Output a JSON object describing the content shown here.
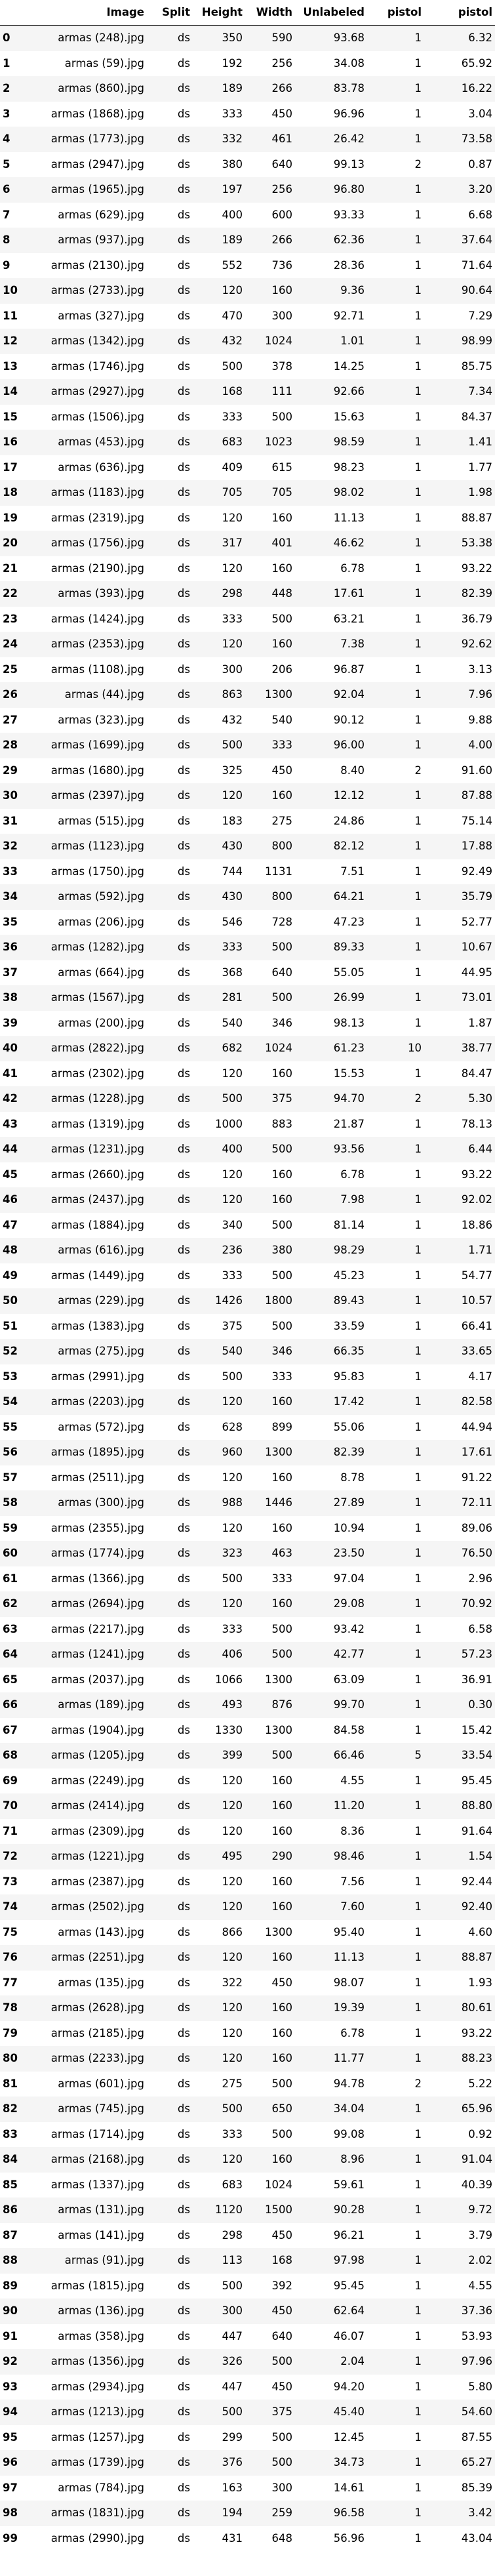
{
  "columns": [
    "",
    "Image",
    "Split",
    "Height",
    "Width",
    "Unlabeled",
    "pistol",
    "pistol"
  ],
  "rows": [
    [
      "0",
      "armas (248).jpg",
      "ds",
      "350",
      "590",
      "93.68",
      "1",
      "6.32"
    ],
    [
      "1",
      "armas (59).jpg",
      "ds",
      "192",
      "256",
      "34.08",
      "1",
      "65.92"
    ],
    [
      "2",
      "armas (860).jpg",
      "ds",
      "189",
      "266",
      "83.78",
      "1",
      "16.22"
    ],
    [
      "3",
      "armas (1868).jpg",
      "ds",
      "333",
      "450",
      "96.96",
      "1",
      "3.04"
    ],
    [
      "4",
      "armas (1773).jpg",
      "ds",
      "332",
      "461",
      "26.42",
      "1",
      "73.58"
    ],
    [
      "5",
      "armas (2947).jpg",
      "ds",
      "380",
      "640",
      "99.13",
      "2",
      "0.87"
    ],
    [
      "6",
      "armas (1965).jpg",
      "ds",
      "197",
      "256",
      "96.80",
      "1",
      "3.20"
    ],
    [
      "7",
      "armas (629).jpg",
      "ds",
      "400",
      "600",
      "93.33",
      "1",
      "6.68"
    ],
    [
      "8",
      "armas (937).jpg",
      "ds",
      "189",
      "266",
      "62.36",
      "1",
      "37.64"
    ],
    [
      "9",
      "armas (2130).jpg",
      "ds",
      "552",
      "736",
      "28.36",
      "1",
      "71.64"
    ],
    [
      "10",
      "armas (2733).jpg",
      "ds",
      "120",
      "160",
      "9.36",
      "1",
      "90.64"
    ],
    [
      "11",
      "armas (327).jpg",
      "ds",
      "470",
      "300",
      "92.71",
      "1",
      "7.29"
    ],
    [
      "12",
      "armas (1342).jpg",
      "ds",
      "432",
      "1024",
      "1.01",
      "1",
      "98.99"
    ],
    [
      "13",
      "armas (1746).jpg",
      "ds",
      "500",
      "378",
      "14.25",
      "1",
      "85.75"
    ],
    [
      "14",
      "armas (2927).jpg",
      "ds",
      "168",
      "111",
      "92.66",
      "1",
      "7.34"
    ],
    [
      "15",
      "armas (1506).jpg",
      "ds",
      "333",
      "500",
      "15.63",
      "1",
      "84.37"
    ],
    [
      "16",
      "armas (453).jpg",
      "ds",
      "683",
      "1023",
      "98.59",
      "1",
      "1.41"
    ],
    [
      "17",
      "armas (636).jpg",
      "ds",
      "409",
      "615",
      "98.23",
      "1",
      "1.77"
    ],
    [
      "18",
      "armas (1183).jpg",
      "ds",
      "705",
      "705",
      "98.02",
      "1",
      "1.98"
    ],
    [
      "19",
      "armas (2319).jpg",
      "ds",
      "120",
      "160",
      "11.13",
      "1",
      "88.87"
    ],
    [
      "20",
      "armas (1756).jpg",
      "ds",
      "317",
      "401",
      "46.62",
      "1",
      "53.38"
    ],
    [
      "21",
      "armas (2190).jpg",
      "ds",
      "120",
      "160",
      "6.78",
      "1",
      "93.22"
    ],
    [
      "22",
      "armas (393).jpg",
      "ds",
      "298",
      "448",
      "17.61",
      "1",
      "82.39"
    ],
    [
      "23",
      "armas (1424).jpg",
      "ds",
      "333",
      "500",
      "63.21",
      "1",
      "36.79"
    ],
    [
      "24",
      "armas (2353).jpg",
      "ds",
      "120",
      "160",
      "7.38",
      "1",
      "92.62"
    ],
    [
      "25",
      "armas (1108).jpg",
      "ds",
      "300",
      "206",
      "96.87",
      "1",
      "3.13"
    ],
    [
      "26",
      "armas (44).jpg",
      "ds",
      "863",
      "1300",
      "92.04",
      "1",
      "7.96"
    ],
    [
      "27",
      "armas (323).jpg",
      "ds",
      "432",
      "540",
      "90.12",
      "1",
      "9.88"
    ],
    [
      "28",
      "armas (1699).jpg",
      "ds",
      "500",
      "333",
      "96.00",
      "1",
      "4.00"
    ],
    [
      "29",
      "armas (1680).jpg",
      "ds",
      "325",
      "450",
      "8.40",
      "2",
      "91.60"
    ],
    [
      "30",
      "armas (2397).jpg",
      "ds",
      "120",
      "160",
      "12.12",
      "1",
      "87.88"
    ],
    [
      "31",
      "armas (515).jpg",
      "ds",
      "183",
      "275",
      "24.86",
      "1",
      "75.14"
    ],
    [
      "32",
      "armas (1123).jpg",
      "ds",
      "430",
      "800",
      "82.12",
      "1",
      "17.88"
    ],
    [
      "33",
      "armas (1750).jpg",
      "ds",
      "744",
      "1131",
      "7.51",
      "1",
      "92.49"
    ],
    [
      "34",
      "armas (592).jpg",
      "ds",
      "430",
      "800",
      "64.21",
      "1",
      "35.79"
    ],
    [
      "35",
      "armas (206).jpg",
      "ds",
      "546",
      "728",
      "47.23",
      "1",
      "52.77"
    ],
    [
      "36",
      "armas (1282).jpg",
      "ds",
      "333",
      "500",
      "89.33",
      "1",
      "10.67"
    ],
    [
      "37",
      "armas (664).jpg",
      "ds",
      "368",
      "640",
      "55.05",
      "1",
      "44.95"
    ],
    [
      "38",
      "armas (1567).jpg",
      "ds",
      "281",
      "500",
      "26.99",
      "1",
      "73.01"
    ],
    [
      "39",
      "armas (200).jpg",
      "ds",
      "540",
      "346",
      "98.13",
      "1",
      "1.87"
    ],
    [
      "40",
      "armas (2822).jpg",
      "ds",
      "682",
      "1024",
      "61.23",
      "10",
      "38.77"
    ],
    [
      "41",
      "armas (2302).jpg",
      "ds",
      "120",
      "160",
      "15.53",
      "1",
      "84.47"
    ],
    [
      "42",
      "armas (1228).jpg",
      "ds",
      "500",
      "375",
      "94.70",
      "2",
      "5.30"
    ],
    [
      "43",
      "armas (1319).jpg",
      "ds",
      "1000",
      "883",
      "21.87",
      "1",
      "78.13"
    ],
    [
      "44",
      "armas (1231).jpg",
      "ds",
      "400",
      "500",
      "93.56",
      "1",
      "6.44"
    ],
    [
      "45",
      "armas (2660).jpg",
      "ds",
      "120",
      "160",
      "6.78",
      "1",
      "93.22"
    ],
    [
      "46",
      "armas (2437).jpg",
      "ds",
      "120",
      "160",
      "7.98",
      "1",
      "92.02"
    ],
    [
      "47",
      "armas (1884).jpg",
      "ds",
      "340",
      "500",
      "81.14",
      "1",
      "18.86"
    ],
    [
      "48",
      "armas (616).jpg",
      "ds",
      "236",
      "380",
      "98.29",
      "1",
      "1.71"
    ],
    [
      "49",
      "armas (1449).jpg",
      "ds",
      "333",
      "500",
      "45.23",
      "1",
      "54.77"
    ],
    [
      "50",
      "armas (229).jpg",
      "ds",
      "1426",
      "1800",
      "89.43",
      "1",
      "10.57"
    ],
    [
      "51",
      "armas (1383).jpg",
      "ds",
      "375",
      "500",
      "33.59",
      "1",
      "66.41"
    ],
    [
      "52",
      "armas (275).jpg",
      "ds",
      "540",
      "346",
      "66.35",
      "1",
      "33.65"
    ],
    [
      "53",
      "armas (2991).jpg",
      "ds",
      "500",
      "333",
      "95.83",
      "1",
      "4.17"
    ],
    [
      "54",
      "armas (2203).jpg",
      "ds",
      "120",
      "160",
      "17.42",
      "1",
      "82.58"
    ],
    [
      "55",
      "armas (572).jpg",
      "ds",
      "628",
      "899",
      "55.06",
      "1",
      "44.94"
    ],
    [
      "56",
      "armas (1895).jpg",
      "ds",
      "960",
      "1300",
      "82.39",
      "1",
      "17.61"
    ],
    [
      "57",
      "armas (2511).jpg",
      "ds",
      "120",
      "160",
      "8.78",
      "1",
      "91.22"
    ],
    [
      "58",
      "armas (300).jpg",
      "ds",
      "988",
      "1446",
      "27.89",
      "1",
      "72.11"
    ],
    [
      "59",
      "armas (2355).jpg",
      "ds",
      "120",
      "160",
      "10.94",
      "1",
      "89.06"
    ],
    [
      "60",
      "armas (1774).jpg",
      "ds",
      "323",
      "463",
      "23.50",
      "1",
      "76.50"
    ],
    [
      "61",
      "armas (1366).jpg",
      "ds",
      "500",
      "333",
      "97.04",
      "1",
      "2.96"
    ],
    [
      "62",
      "armas (2694).jpg",
      "ds",
      "120",
      "160",
      "29.08",
      "1",
      "70.92"
    ],
    [
      "63",
      "armas (2217).jpg",
      "ds",
      "333",
      "500",
      "93.42",
      "1",
      "6.58"
    ],
    [
      "64",
      "armas (1241).jpg",
      "ds",
      "406",
      "500",
      "42.77",
      "1",
      "57.23"
    ],
    [
      "65",
      "armas (2037).jpg",
      "ds",
      "1066",
      "1300",
      "63.09",
      "1",
      "36.91"
    ],
    [
      "66",
      "armas (189).jpg",
      "ds",
      "493",
      "876",
      "99.70",
      "1",
      "0.30"
    ],
    [
      "67",
      "armas (1904).jpg",
      "ds",
      "1330",
      "1300",
      "84.58",
      "1",
      "15.42"
    ],
    [
      "68",
      "armas (1205).jpg",
      "ds",
      "399",
      "500",
      "66.46",
      "5",
      "33.54"
    ],
    [
      "69",
      "armas (2249).jpg",
      "ds",
      "120",
      "160",
      "4.55",
      "1",
      "95.45"
    ],
    [
      "70",
      "armas (2414).jpg",
      "ds",
      "120",
      "160",
      "11.20",
      "1",
      "88.80"
    ],
    [
      "71",
      "armas (2309).jpg",
      "ds",
      "120",
      "160",
      "8.36",
      "1",
      "91.64"
    ],
    [
      "72",
      "armas (1221).jpg",
      "ds",
      "495",
      "290",
      "98.46",
      "1",
      "1.54"
    ],
    [
      "73",
      "armas (2387).jpg",
      "ds",
      "120",
      "160",
      "7.56",
      "1",
      "92.44"
    ],
    [
      "74",
      "armas (2502).jpg",
      "ds",
      "120",
      "160",
      "7.60",
      "1",
      "92.40"
    ],
    [
      "75",
      "armas (143).jpg",
      "ds",
      "866",
      "1300",
      "95.40",
      "1",
      "4.60"
    ],
    [
      "76",
      "armas (2251).jpg",
      "ds",
      "120",
      "160",
      "11.13",
      "1",
      "88.87"
    ],
    [
      "77",
      "armas (135).jpg",
      "ds",
      "322",
      "450",
      "98.07",
      "1",
      "1.93"
    ],
    [
      "78",
      "armas (2628).jpg",
      "ds",
      "120",
      "160",
      "19.39",
      "1",
      "80.61"
    ],
    [
      "79",
      "armas (2185).jpg",
      "ds",
      "120",
      "160",
      "6.78",
      "1",
      "93.22"
    ],
    [
      "80",
      "armas (2233).jpg",
      "ds",
      "120",
      "160",
      "11.77",
      "1",
      "88.23"
    ],
    [
      "81",
      "armas (601).jpg",
      "ds",
      "275",
      "500",
      "94.78",
      "2",
      "5.22"
    ],
    [
      "82",
      "armas (745).jpg",
      "ds",
      "500",
      "650",
      "34.04",
      "1",
      "65.96"
    ],
    [
      "83",
      "armas (1714).jpg",
      "ds",
      "333",
      "500",
      "99.08",
      "1",
      "0.92"
    ],
    [
      "84",
      "armas (2168).jpg",
      "ds",
      "120",
      "160",
      "8.96",
      "1",
      "91.04"
    ],
    [
      "85",
      "armas (1337).jpg",
      "ds",
      "683",
      "1024",
      "59.61",
      "1",
      "40.39"
    ],
    [
      "86",
      "armas (131).jpg",
      "ds",
      "1120",
      "1500",
      "90.28",
      "1",
      "9.72"
    ],
    [
      "87",
      "armas (141).jpg",
      "ds",
      "298",
      "450",
      "96.21",
      "1",
      "3.79"
    ],
    [
      "88",
      "armas (91).jpg",
      "ds",
      "113",
      "168",
      "97.98",
      "1",
      "2.02"
    ],
    [
      "89",
      "armas (1815).jpg",
      "ds",
      "500",
      "392",
      "95.45",
      "1",
      "4.55"
    ],
    [
      "90",
      "armas (136).jpg",
      "ds",
      "300",
      "450",
      "62.64",
      "1",
      "37.36"
    ],
    [
      "91",
      "armas (358).jpg",
      "ds",
      "447",
      "640",
      "46.07",
      "1",
      "53.93"
    ],
    [
      "92",
      "armas (1356).jpg",
      "ds",
      "326",
      "500",
      "2.04",
      "1",
      "97.96"
    ],
    [
      "93",
      "armas (2934).jpg",
      "ds",
      "447",
      "450",
      "94.20",
      "1",
      "5.80"
    ],
    [
      "94",
      "armas (1213).jpg",
      "ds",
      "500",
      "375",
      "45.40",
      "1",
      "54.60"
    ],
    [
      "95",
      "armas (1257).jpg",
      "ds",
      "299",
      "500",
      "12.45",
      "1",
      "87.55"
    ],
    [
      "96",
      "armas (1739).jpg",
      "ds",
      "376",
      "500",
      "34.73",
      "1",
      "65.27"
    ],
    [
      "97",
      "armas (784).jpg",
      "ds",
      "163",
      "300",
      "14.61",
      "1",
      "85.39"
    ],
    [
      "98",
      "armas (1831).jpg",
      "ds",
      "194",
      "259",
      "96.58",
      "1",
      "3.42"
    ],
    [
      "99",
      "armas (2990).jpg",
      "ds",
      "431",
      "648",
      "56.96",
      "1",
      "43.04"
    ]
  ]
}
